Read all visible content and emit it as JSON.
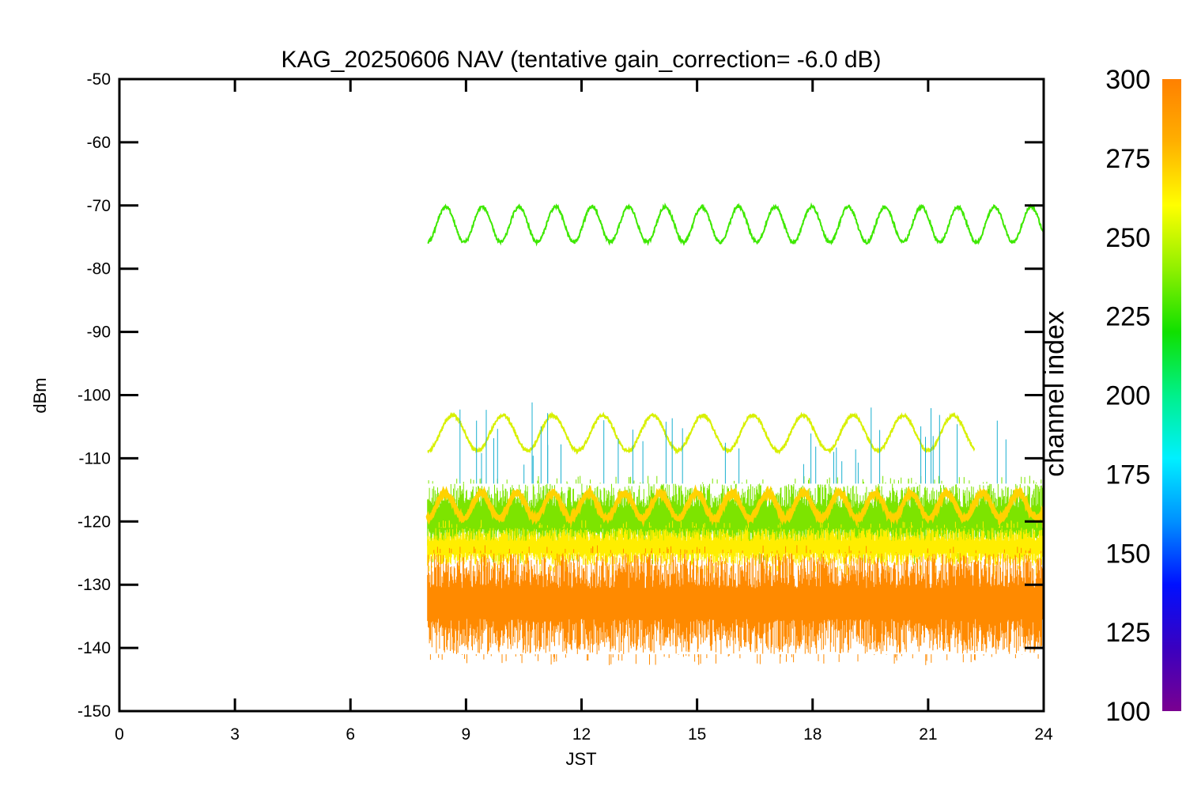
{
  "chart_data": {
    "type": "line",
    "title": "KAG_20250606 NAV (tentative gain_correction= -6.0 dB)",
    "xlabel": "JST",
    "ylabel": "dBm",
    "xlim": [
      0,
      24
    ],
    "ylim": [
      -150,
      -50
    ],
    "x_ticks": [
      "0",
      "3",
      "6",
      "9",
      "12",
      "15",
      "18",
      "21",
      "24"
    ],
    "y_ticks": [
      "-50",
      "-60",
      "-70",
      "-80",
      "-90",
      "-100",
      "-110",
      "-120",
      "-130",
      "-140",
      "-150"
    ],
    "colorbar": {
      "label": "channel index",
      "range": [
        100,
        300
      ],
      "ticks": [
        "300",
        "275",
        "250",
        "225",
        "200",
        "175",
        "150",
        "125",
        "100"
      ],
      "colors": [
        "#7a0090",
        "#3a00c0",
        "#0010ff",
        "#0090ff",
        "#00f0ff",
        "#00f08a",
        "#10e000",
        "#90f000",
        "#ffff00",
        "#ffb000",
        "#ff8000"
      ]
    },
    "series": [
      {
        "x_start": 8.0,
        "x_end": 24.0,
        "mean": -73,
        "amplitude": 2.8,
        "period_hours": 0.95,
        "channel_index": 248,
        "color": "#3ee800",
        "kind": "oscillating-line"
      },
      {
        "x_start": 8.0,
        "x_end": 22.2,
        "mean": -106,
        "amplitude": 2.8,
        "period_hours": 1.3,
        "channel_index": 262,
        "color": "#d8f000",
        "kind": "oscillating-line"
      },
      {
        "x_start": 8.0,
        "x_end": 24.0,
        "mean": -117.5,
        "amplitude": 2.0,
        "period_hours": 0.93,
        "channel_index": 268,
        "color": "#ffd200",
        "kind": "oscillating-line"
      },
      {
        "x_start": 8.0,
        "x_end": 24.0,
        "y_top": -114,
        "y_bottom": -125,
        "channel_index": 252,
        "color": "#7de400",
        "kind": "noise-band"
      },
      {
        "x_start": 8.0,
        "x_end": 24.0,
        "y_top": -121,
        "y_bottom": -127,
        "channel_index": 265,
        "color": "#ffee00",
        "kind": "noise-band"
      },
      {
        "x_start": 8.0,
        "x_end": 24.0,
        "y_top": -125,
        "y_bottom": -141,
        "channel_index": 290,
        "color": "#ff8a00",
        "kind": "noise-band"
      }
    ]
  }
}
